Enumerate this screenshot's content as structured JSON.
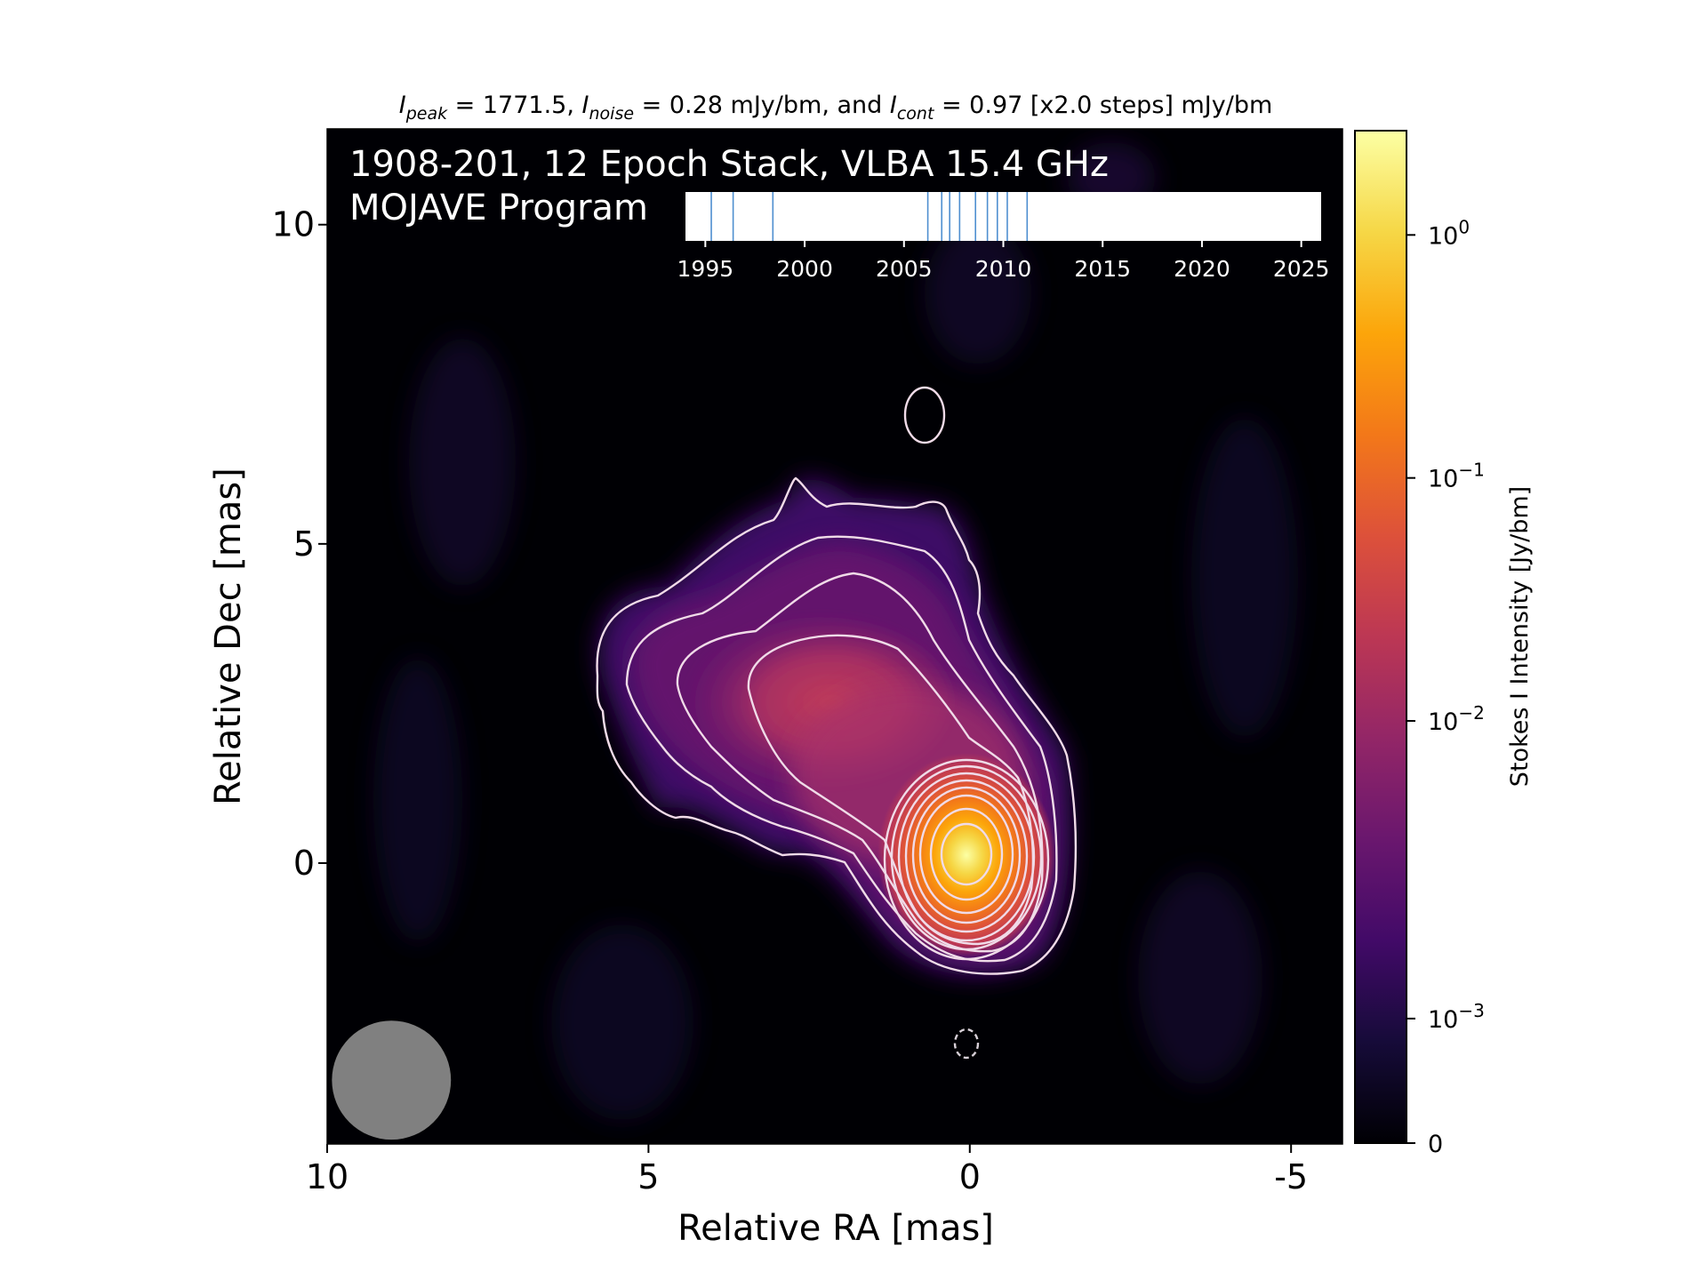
{
  "chart_data": {
    "type": "heatmap",
    "header": {
      "peak_sym": "I",
      "peak_sub": "peak",
      "peak_eq": " = 1771.5, ",
      "noise_sym": "I",
      "noise_sub": "noise",
      "noise_eq": " = 0.28 mJy/bm, and ",
      "cont_sym": "I",
      "cont_sub": "cont",
      "cont_eq": " = 0.97 [x2.0 steps] mJy/bm"
    },
    "title_line1": "1908-201, 12 Epoch Stack, VLBA 15.4 GHz",
    "title_line2": "MOJAVE Program",
    "xlabel": "Relative RA [mas]",
    "ylabel": "Relative Dec [mas]",
    "xlim": [
      10,
      -5.8
    ],
    "ylim": [
      -4.4,
      11.5
    ],
    "x_ticks": [
      10,
      5,
      0,
      -5
    ],
    "x_tick_labels": [
      "10",
      "5",
      "0",
      "-5"
    ],
    "y_ticks": [
      10,
      5,
      0
    ],
    "y_tick_labels": [
      "10",
      "5",
      "0"
    ],
    "colorbar": {
      "label": "Stokes I Intensity [Jy/bm]",
      "scale": "log",
      "colormap": "inferno",
      "ticks": [
        {
          "value": 1.0,
          "base": "10",
          "exp": "0"
        },
        {
          "value": 0.1,
          "base": "10",
          "exp": "−1"
        },
        {
          "value": 0.01,
          "base": "10",
          "exp": "−2"
        },
        {
          "value": 0.001,
          "base": "10",
          "exp": "−3"
        },
        {
          "value": 0,
          "base": "0",
          "exp": ""
        }
      ]
    },
    "epoch_timeline": {
      "range": [
        1994,
        2026
      ],
      "ticks": [
        1995,
        2000,
        2005,
        2010,
        2015,
        2020,
        2025
      ],
      "tick_labels": [
        "1995",
        "2000",
        "2005",
        "2010",
        "2015",
        "2020",
        "2025"
      ],
      "epochs": [
        1995.3,
        1996.4,
        1998.4,
        2006.2,
        2006.9,
        2007.3,
        2007.8,
        2008.6,
        2009.2,
        2009.7,
        2010.2,
        2011.2
      ],
      "line_color": "#4f8fd0"
    },
    "source": {
      "peak_pos": [
        0,
        0.1
      ],
      "peak_jy": 1.7715
    },
    "beam": {
      "x": 9.0,
      "y": -3.4,
      "major_mas": 0.95,
      "minor_mas": 0.95,
      "color": "#808080"
    },
    "contour_color": "#f0dbe8",
    "background_color": "#000004"
  }
}
